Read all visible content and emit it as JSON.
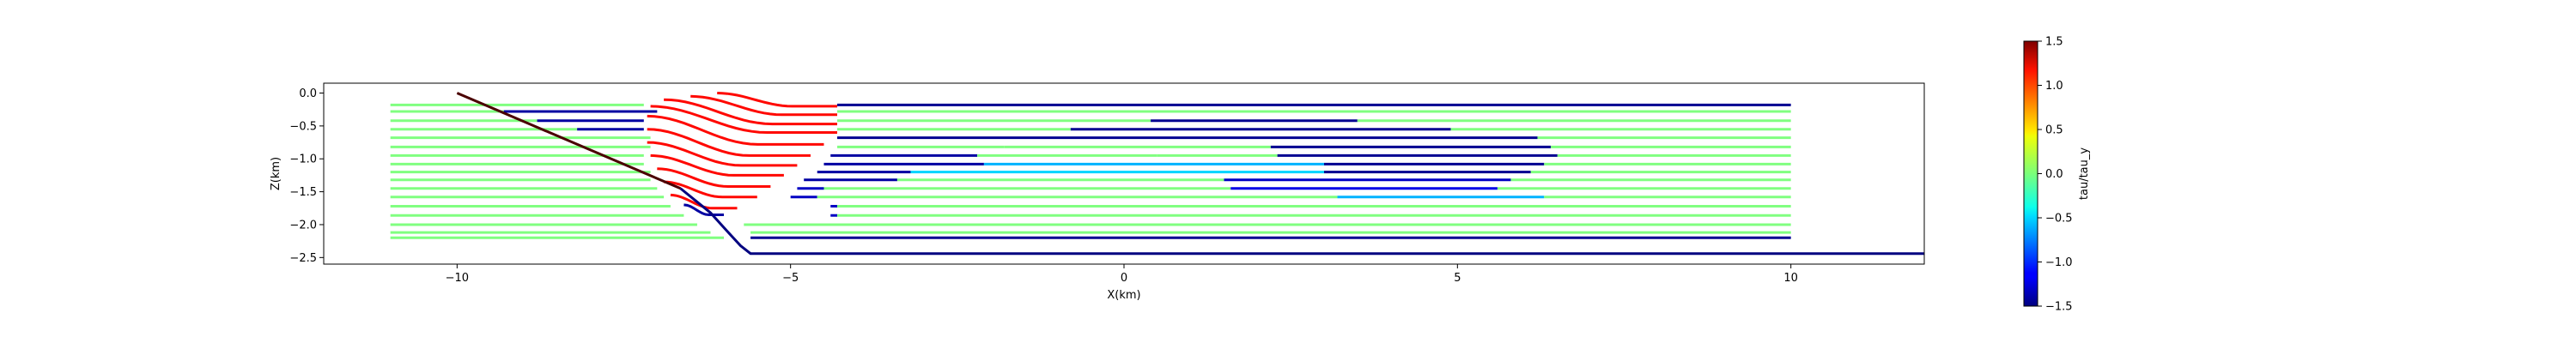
{
  "chart_data": {
    "type": "line",
    "title": "",
    "xlabel": "X(km)",
    "ylabel": "Z(km)",
    "xlim": [
      -12.0,
      12.0
    ],
    "ylim": [
      -2.6,
      0.15
    ],
    "xticks": [
      -10,
      -5,
      0,
      5,
      10
    ],
    "xtick_labels": [
      "−10",
      "−5",
      "0",
      "5",
      "10"
    ],
    "yticks": [
      0.0,
      -0.5,
      -1.0,
      -1.5,
      -2.0,
      -2.5
    ],
    "ytick_labels": [
      "0.0",
      "−0.5",
      "−1.0",
      "−1.5",
      "−2.0",
      "−2.5"
    ],
    "grid": false,
    "legend": "none",
    "fault": {
      "name": "",
      "color": "#4a0000",
      "x": [
        -10.0,
        -6.65
      ],
      "y": [
        0.0,
        -1.45
      ]
    },
    "basal_fault": {
      "color": "#000080",
      "x": [
        -6.65,
        -6.2,
        -5.95,
        -5.75,
        -5.6,
        12.0
      ],
      "y": [
        -1.45,
        -1.82,
        -2.1,
        -2.32,
        -2.44,
        -2.44
      ]
    },
    "layer_lines": [
      {
        "z": -0.18,
        "x_left": -11.0,
        "x_right": 10.0,
        "segments": [
          [
            -11.0,
            -9.6,
            0.0
          ],
          [
            -9.6,
            -7.2,
            0.0
          ],
          [
            -4.3,
            10.0,
            -1.45
          ]
        ]
      },
      {
        "z": -0.28,
        "x_left": -11.0,
        "x_right": 10.0,
        "segments": [
          [
            -11.0,
            -9.3,
            0.0
          ],
          [
            -9.3,
            -7.0,
            -1.4
          ],
          [
            -4.3,
            10.0,
            0.0
          ]
        ]
      },
      {
        "z": -0.42,
        "x_left": -11.0,
        "x_right": 10.0,
        "segments": [
          [
            -11.0,
            -8.8,
            0.0
          ],
          [
            -8.8,
            -7.2,
            -1.4
          ],
          [
            -4.3,
            0.4,
            0.0
          ],
          [
            0.4,
            3.5,
            -1.45
          ],
          [
            3.5,
            10.0,
            0.0
          ]
        ]
      },
      {
        "z": -0.55,
        "x_left": -11.0,
        "x_right": 10.0,
        "segments": [
          [
            -11.0,
            -8.2,
            0.0
          ],
          [
            -8.2,
            -7.2,
            -1.4
          ],
          [
            -4.3,
            -0.8,
            0.0
          ],
          [
            -0.8,
            4.9,
            -1.45
          ],
          [
            4.9,
            10.0,
            0.0
          ]
        ]
      },
      {
        "z": -0.68,
        "x_left": -11.0,
        "x_right": 10.0,
        "segments": [
          [
            -11.0,
            -7.1,
            0.0
          ],
          [
            -4.3,
            6.2,
            -1.45
          ],
          [
            6.2,
            10.0,
            0.0
          ]
        ]
      },
      {
        "z": -0.82,
        "x_left": -11.0,
        "x_right": 10.0,
        "segments": [
          [
            -11.0,
            -7.1,
            0.0
          ],
          [
            -4.3,
            -1.8,
            0.0
          ],
          [
            -1.8,
            2.2,
            0.0
          ],
          [
            2.2,
            6.4,
            -1.45
          ],
          [
            6.4,
            10.0,
            0.0
          ]
        ]
      },
      {
        "z": -0.95,
        "x_left": -11.0,
        "x_right": 10.0,
        "segments": [
          [
            -11.0,
            -7.2,
            0.0
          ],
          [
            -4.4,
            -2.2,
            -1.4
          ],
          [
            -2.2,
            0.5,
            0.0
          ],
          [
            0.5,
            2.3,
            0.0
          ],
          [
            2.3,
            6.5,
            -1.45
          ],
          [
            6.5,
            10.0,
            0.0
          ]
        ]
      },
      {
        "z": -1.08,
        "x_left": -11.0,
        "x_right": 10.0,
        "segments": [
          [
            -11.0,
            -7.2,
            0.0
          ],
          [
            -4.5,
            -2.1,
            -1.4
          ],
          [
            -2.1,
            3.0,
            -0.6
          ],
          [
            3.0,
            6.3,
            -1.45
          ],
          [
            6.3,
            10.0,
            0.0
          ]
        ]
      },
      {
        "z": -1.2,
        "x_left": -11.0,
        "x_right": 10.0,
        "segments": [
          [
            -11.0,
            -7.1,
            0.0
          ],
          [
            -4.6,
            -3.2,
            -1.4
          ],
          [
            -3.2,
            3.0,
            -0.5
          ],
          [
            3.0,
            6.1,
            -1.45
          ],
          [
            6.1,
            10.0,
            0.0
          ]
        ]
      },
      {
        "z": -1.32,
        "x_left": -11.0,
        "x_right": 10.0,
        "segments": [
          [
            -11.0,
            -7.1,
            0.0
          ],
          [
            -4.8,
            -3.4,
            -1.4
          ],
          [
            -3.4,
            1.5,
            0.0
          ],
          [
            1.5,
            5.8,
            -1.3
          ],
          [
            5.8,
            10.0,
            0.0
          ]
        ]
      },
      {
        "z": -1.45,
        "x_left": -11.0,
        "x_right": 10.0,
        "segments": [
          [
            -11.0,
            -7.0,
            0.0
          ],
          [
            -4.9,
            -4.5,
            -1.3
          ],
          [
            -4.5,
            1.6,
            0.0
          ],
          [
            1.6,
            5.6,
            -1.2
          ],
          [
            5.6,
            10.0,
            0.0
          ]
        ]
      },
      {
        "z": -1.58,
        "x_left": -11.0,
        "x_right": 10.0,
        "segments": [
          [
            -11.0,
            -6.9,
            0.0
          ],
          [
            -5.0,
            -4.6,
            -1.3
          ],
          [
            -4.6,
            3.2,
            0.0
          ],
          [
            3.2,
            6.3,
            -0.6
          ],
          [
            6.3,
            10.0,
            0.0
          ]
        ]
      },
      {
        "z": -1.72,
        "x_left": -11.0,
        "x_right": 10.0,
        "segments": [
          [
            -11.0,
            -6.8,
            0.0
          ],
          [
            -4.4,
            -4.3,
            -1.3
          ],
          [
            -4.3,
            10.0,
            0.0
          ]
        ]
      },
      {
        "z": -1.86,
        "x_left": -11.0,
        "x_right": 10.0,
        "segments": [
          [
            -11.0,
            -6.6,
            0.0
          ],
          [
            -4.4,
            -4.3,
            -1.3
          ],
          [
            -4.3,
            10.0,
            0.0
          ]
        ]
      },
      {
        "z": -2.0,
        "x_left": -11.0,
        "x_right": 10.0,
        "segments": [
          [
            -11.0,
            -6.4,
            0.0
          ],
          [
            -5.7,
            10.0,
            0.0
          ]
        ]
      },
      {
        "z": -2.12,
        "x_left": -11.0,
        "x_right": 10.0,
        "segments": [
          [
            -11.0,
            -6.2,
            0.0
          ],
          [
            -5.6,
            10.0,
            0.0
          ]
        ]
      },
      {
        "z": -2.2,
        "x_left": -11.0,
        "x_right": 10.0,
        "segments": [
          [
            -11.0,
            -6.0,
            0.0
          ],
          [
            -5.6,
            10.0,
            -1.45
          ]
        ]
      }
    ],
    "fold_curves": [
      {
        "z_top": -0.0,
        "z_flat": -0.2,
        "x_start": -6.1,
        "x_end": -4.3,
        "value": 1.1
      },
      {
        "z_top": -0.05,
        "z_flat": -0.33,
        "x_start": -6.5,
        "x_end": -4.3,
        "value": 1.1
      },
      {
        "z_top": -0.1,
        "z_flat": -0.47,
        "x_start": -6.9,
        "x_end": -4.3,
        "value": 1.1
      },
      {
        "z_top": -0.2,
        "z_flat": -0.6,
        "x_start": -7.1,
        "x_end": -4.3,
        "value": 1.1
      },
      {
        "z_top": -0.35,
        "z_flat": -0.78,
        "x_start": -7.15,
        "x_end": -4.5,
        "value": 1.1
      },
      {
        "z_top": -0.55,
        "z_flat": -0.95,
        "x_start": -7.15,
        "x_end": -4.7,
        "value": 1.1
      },
      {
        "z_top": -0.75,
        "z_flat": -1.1,
        "x_start": -7.15,
        "x_end": -4.9,
        "value": 1.1
      },
      {
        "z_top": -0.95,
        "z_flat": -1.25,
        "x_start": -7.1,
        "x_end": -5.1,
        "value": 1.1
      },
      {
        "z_top": -1.15,
        "z_flat": -1.42,
        "x_start": -7.0,
        "x_end": -5.3,
        "value": 1.1
      },
      {
        "z_top": -1.35,
        "z_flat": -1.58,
        "x_start": -6.9,
        "x_end": -5.5,
        "value": 1.1
      },
      {
        "z_top": -1.55,
        "z_flat": -1.75,
        "x_start": -6.8,
        "x_end": -5.8,
        "value": 1.1
      },
      {
        "z_top": -1.7,
        "z_flat": -1.85,
        "x_start": -6.6,
        "x_end": -6.0,
        "value": -1.4
      }
    ],
    "colorbar": {
      "label": "tau/tau_y",
      "colormap": "jet",
      "vmin": -1.5,
      "vmax": 1.5,
      "ticks": [
        1.5,
        1.0,
        0.5,
        0.0,
        -0.5,
        -1.0,
        -1.5
      ],
      "tick_labels": [
        "1.5",
        "1.0",
        "0.5",
        "0.0",
        "−0.5",
        "−1.0",
        "−1.5"
      ]
    }
  }
}
